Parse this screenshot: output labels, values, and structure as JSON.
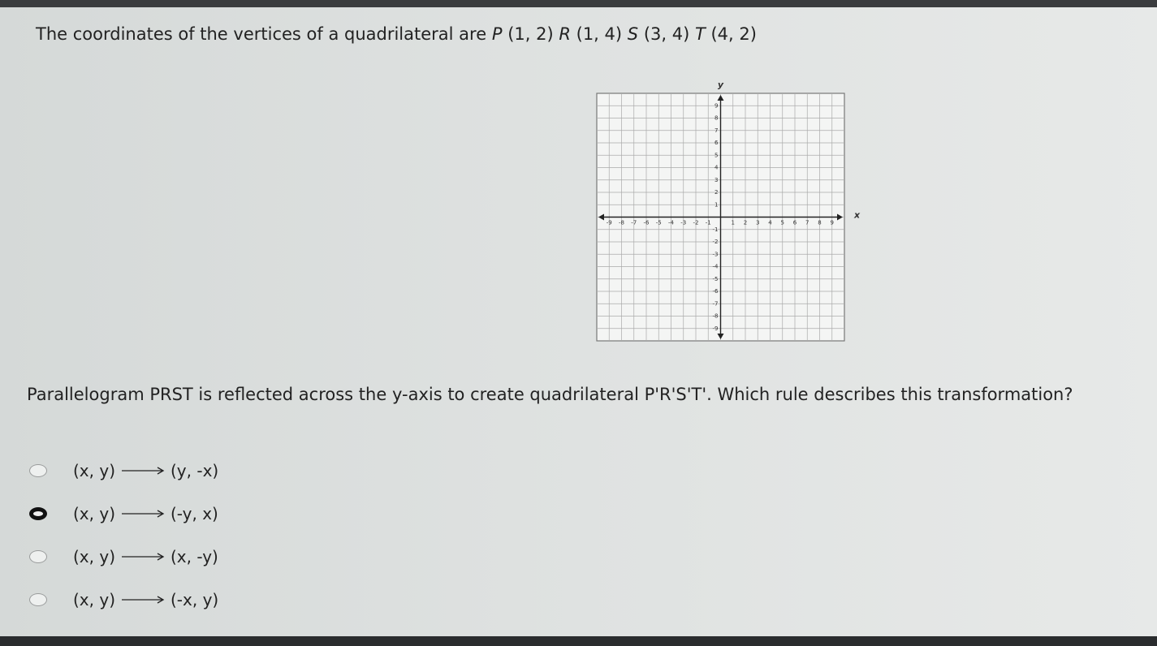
{
  "question1": {
    "intro": "The coordinates of the vertices of a quadrilateral are",
    "vertices": [
      {
        "name": "P",
        "coords": "(1, 2)"
      },
      {
        "name": "R",
        "coords": "(1, 4)"
      },
      {
        "name": "S",
        "coords": "(3, 4)"
      },
      {
        "name": "T",
        "coords": "(4, 2)"
      }
    ]
  },
  "grid": {
    "x_axis_label": "x",
    "y_axis_label": "y",
    "x_labels": [
      "-9",
      "-8",
      "-7",
      "-6",
      "-5",
      "-4",
      "-3",
      "-2",
      "-1",
      "1",
      "2",
      "3",
      "4",
      "5",
      "6",
      "7",
      "8",
      "9"
    ],
    "y_labels": [
      "9",
      "8",
      "7",
      "6",
      "5",
      "4",
      "3",
      "2",
      "1",
      "-1",
      "-2",
      "-3",
      "-4",
      "-5",
      "-6",
      "-7",
      "-8",
      "-9"
    ]
  },
  "question2": {
    "text": "Parallelogram PRST is reflected across the y-axis to create quadrilateral P'R'S'T'. Which rule describes this transformation?"
  },
  "options": [
    {
      "from": "(x, y)",
      "to": "(y, -x)",
      "selected": false
    },
    {
      "from": "(x, y)",
      "to": "(-y, x)",
      "selected": true
    },
    {
      "from": "(x, y)",
      "to": "(x, -y)",
      "selected": false
    },
    {
      "from": "(x, y)",
      "to": "(-x, y)",
      "selected": false
    }
  ]
}
